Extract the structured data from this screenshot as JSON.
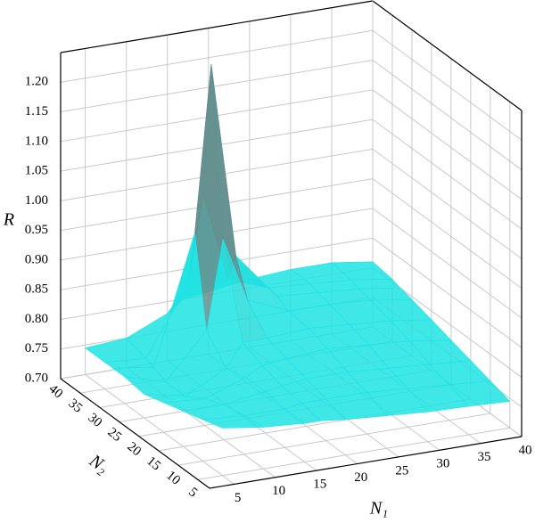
{
  "chart_data": {
    "type": "surface",
    "x_label": "N₁",
    "y_label": "N₂",
    "z_label": "R",
    "x": [
      5,
      10,
      15,
      17,
      20,
      25,
      30,
      35,
      40
    ],
    "y": [
      5,
      10,
      15,
      20,
      25,
      30,
      33,
      35,
      40
    ],
    "z": [
      [
        0.78,
        0.77,
        0.765,
        0.765,
        0.76,
        0.755,
        0.75,
        0.748,
        0.745
      ],
      [
        0.77,
        0.765,
        0.765,
        0.77,
        0.77,
        0.77,
        0.765,
        0.76,
        0.755
      ],
      [
        0.76,
        0.76,
        0.77,
        0.775,
        0.78,
        0.78,
        0.775,
        0.77,
        0.765
      ],
      [
        0.75,
        0.745,
        0.77,
        0.785,
        0.79,
        0.795,
        0.79,
        0.785,
        0.775
      ],
      [
        0.74,
        0.725,
        0.76,
        0.8,
        0.8,
        0.805,
        0.8,
        0.795,
        0.785
      ],
      [
        0.745,
        0.725,
        0.8,
        0.95,
        0.84,
        0.81,
        0.81,
        0.805,
        0.795
      ],
      [
        0.745,
        0.735,
        0.95,
        1.23,
        0.9,
        0.82,
        0.815,
        0.81,
        0.8
      ],
      [
        0.745,
        0.74,
        0.85,
        1.0,
        0.85,
        0.825,
        0.82,
        0.815,
        0.805
      ],
      [
        0.745,
        0.75,
        0.78,
        0.8,
        0.805,
        0.815,
        0.82,
        0.82,
        0.81
      ]
    ],
    "colors": [
      "#1fe3e3",
      "#d40000"
    ],
    "xlim": [
      2,
      40
    ],
    "ylim": [
      2,
      40
    ],
    "zlim": [
      0.7,
      1.25
    ],
    "xticks": [
      5,
      10,
      15,
      20,
      25,
      30,
      35,
      40
    ],
    "yticks": [
      5,
      10,
      15,
      20,
      25,
      30,
      35,
      40
    ],
    "zticks": [
      {
        "value": 0.7,
        "label": "0.70"
      },
      0.75,
      {
        "value": 0.8,
        "label": "0.80"
      },
      0.85,
      {
        "value": 0.9,
        "label": "0.90"
      },
      0.95,
      {
        "value": 1.0,
        "label": "1.00"
      },
      1.05,
      {
        "value": 1.1,
        "label": "1.10"
      },
      1.15,
      {
        "value": 1.2,
        "label": "1.20"
      }
    ],
    "grid": true
  }
}
